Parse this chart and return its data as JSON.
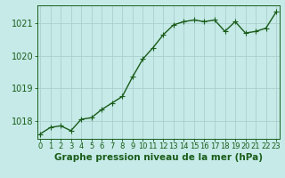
{
  "x": [
    0,
    1,
    2,
    3,
    4,
    5,
    6,
    7,
    8,
    9,
    10,
    11,
    12,
    13,
    14,
    15,
    16,
    17,
    18,
    19,
    20,
    21,
    22,
    23
  ],
  "y": [
    1017.6,
    1017.8,
    1017.85,
    1017.7,
    1018.05,
    1018.1,
    1018.35,
    1018.55,
    1018.75,
    1019.35,
    1019.9,
    1020.25,
    1020.65,
    1020.95,
    1021.05,
    1021.1,
    1021.05,
    1021.1,
    1020.75,
    1021.05,
    1020.7,
    1020.75,
    1020.85,
    1021.35
  ],
  "background_color": "#c5eae7",
  "line_color": "#1a5c1a",
  "marker_color": "#1a5c1a",
  "grid_color": "#aacfcc",
  "axis_color": "#1a5c1a",
  "title": "Graphe pression niveau de la mer (hPa)",
  "ylim": [
    1017.45,
    1021.55
  ],
  "yticks": [
    1018,
    1019,
    1020,
    1021
  ],
  "xtick_labels": [
    "0",
    "1",
    "2",
    "3",
    "4",
    "5",
    "6",
    "7",
    "8",
    "9",
    "10",
    "11",
    "12",
    "13",
    "14",
    "15",
    "16",
    "17",
    "18",
    "19",
    "20",
    "21",
    "22",
    "23"
  ],
  "title_color": "#1a5c1a",
  "title_fontsize": 7.5,
  "ytick_fontsize": 7,
  "xtick_fontsize": 6,
  "marker_size": 2.5,
  "line_width": 1.0
}
